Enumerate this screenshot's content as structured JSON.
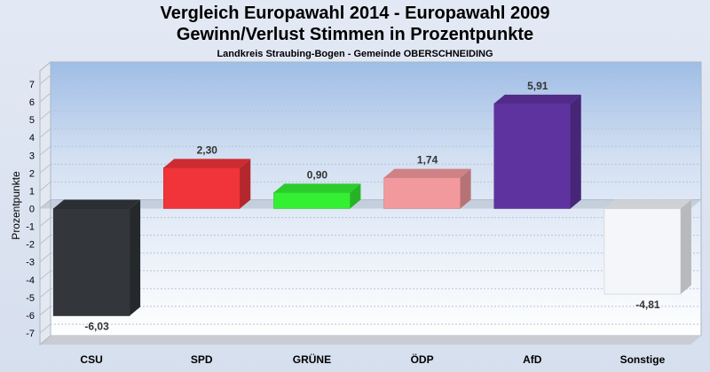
{
  "title_line1": "Vergleich Europawahl 2014 - Europawahl 2009",
  "title_line2": "Gewinn/Verlust Stimmen in Prozentpunkte",
  "subtitle": "Landkreis Straubing-Bogen - Gemeinde OBERSCHNEIDING",
  "chart_data": {
    "type": "bar",
    "title": "Vergleich Europawahl 2014 - Europawahl 2009 / Gewinn/Verlust Stimmen in Prozentpunkte",
    "subtitle": "Landkreis Straubing-Bogen - Gemeinde OBERSCHNEIDING",
    "xlabel": "",
    "ylabel": "Prozentpunkte",
    "ylim": [
      -7,
      7
    ],
    "yticks": [
      7,
      6,
      5,
      4,
      3,
      2,
      1,
      0,
      -1,
      -2,
      -3,
      -4,
      -5,
      -6,
      -7
    ],
    "ytick_labels": [
      "7",
      "6",
      "5",
      "4",
      "3",
      "2",
      "1",
      "0",
      "-1",
      "-2",
      "-3",
      "-4",
      "-5",
      "-6",
      "-7"
    ],
    "grid": true,
    "categories": [
      "CSU",
      "SPD",
      "GRÜNE",
      "ÖDP",
      "AfD",
      "Sonstige"
    ],
    "values": [
      -6.03,
      2.3,
      0.9,
      1.74,
      5.91,
      -4.81
    ],
    "value_labels": [
      "-6,03",
      "2,30",
      "0,90",
      "1,74",
      "5,91",
      "-4,81"
    ],
    "colors": [
      "#33363b",
      "#f0343a",
      "#33f033",
      "#f2999d",
      "#5f339f",
      "#f4f6fa"
    ]
  }
}
